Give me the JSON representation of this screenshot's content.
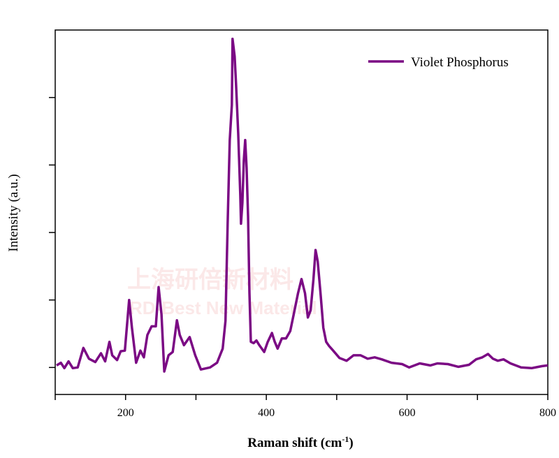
{
  "chart_data": {
    "type": "line",
    "title": "",
    "xlabel": "Raman shift (cm",
    "xlabel_sup": "-1",
    "xlabel_close": ")",
    "ylabel": "Intensity (a.u.)",
    "xlim": [
      100,
      800
    ],
    "ylim": [
      -0.4,
      5.0
    ],
    "x_ticks": [
      100,
      200,
      300,
      400,
      500,
      600,
      700,
      800
    ],
    "x_tick_labels": [
      "200",
      "400",
      "600",
      "800"
    ],
    "x_tick_label_values": [
      200,
      400,
      600,
      800
    ],
    "y_ticks": [
      0,
      1,
      2,
      3,
      4
    ],
    "grid": false,
    "legend_position": "top-right",
    "series": [
      {
        "name": "Violet Phosphorus",
        "color": "#7b0a84",
        "x": [
          102,
          108,
          113,
          119,
          125,
          132,
          140,
          148,
          157,
          165,
          171,
          177,
          181,
          188,
          193,
          199,
          205,
          209,
          215,
          221,
          226,
          231,
          237,
          243,
          247,
          251,
          255,
          261,
          267,
          273,
          277,
          283,
          291,
          299,
          307,
          320,
          330,
          338,
          342,
          345,
          348,
          351,
          352,
          355,
          357,
          360,
          363,
          364,
          366,
          368,
          370,
          372,
          374,
          376,
          378,
          382,
          386,
          390,
          397,
          402,
          408,
          412,
          416,
          422,
          428,
          434,
          439,
          445,
          450,
          455,
          459,
          463,
          467,
          470,
          473,
          477,
          481,
          485,
          489,
          495,
          504,
          514,
          524,
          534,
          544,
          554,
          564,
          578,
          593,
          603,
          618,
          633,
          643,
          658,
          673,
          688,
          698,
          707,
          715,
          722,
          729,
          737,
          747,
          762,
          777,
          792,
          800
        ],
        "y": [
          0.03,
          0.07,
          -0.01,
          0.09,
          -0.01,
          0,
          0.29,
          0.13,
          0.08,
          0.21,
          0.09,
          0.38,
          0.18,
          0.11,
          0.24,
          0.25,
          1.0,
          0.59,
          0.07,
          0.25,
          0.15,
          0.48,
          0.61,
          0.61,
          1.19,
          0.79,
          -0.06,
          0.18,
          0.23,
          0.7,
          0.48,
          0.33,
          0.45,
          0.18,
          -0.03,
          0,
          0.07,
          0.28,
          0.69,
          2.13,
          3.37,
          3.89,
          4.87,
          4.61,
          4.2,
          3.47,
          2.55,
          2.13,
          2.44,
          3.06,
          3.37,
          2.96,
          2.24,
          1.1,
          0.38,
          0.36,
          0.4,
          0.33,
          0.23,
          0.38,
          0.51,
          0.38,
          0.28,
          0.43,
          0.43,
          0.54,
          0.79,
          1.1,
          1.31,
          1.1,
          0.74,
          0.85,
          1.31,
          1.74,
          1.57,
          1.1,
          0.59,
          0.38,
          0.32,
          0.25,
          0.14,
          0.1,
          0.18,
          0.18,
          0.13,
          0.15,
          0.12,
          0.07,
          0.05,
          0,
          0.06,
          0.03,
          0.06,
          0.05,
          0.01,
          0.04,
          0.12,
          0.15,
          0.2,
          0.13,
          0.1,
          0.12,
          0.06,
          0,
          -0.01,
          0.02,
          0.03
        ]
      }
    ]
  },
  "watermark": {
    "line1": "上海研倍新材料",
    "line2": "RD-Best New Material"
  }
}
